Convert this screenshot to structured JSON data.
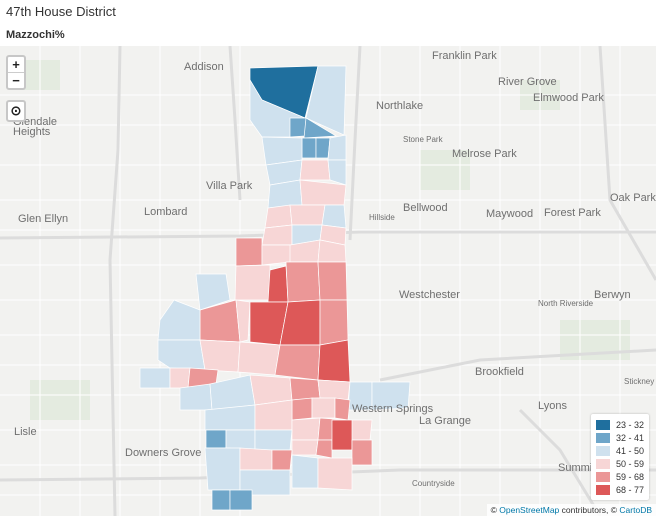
{
  "header": {
    "title": "47th House District",
    "subtitle": "Mazzochi%"
  },
  "controls": {
    "zoom_in": "+",
    "zoom_out": "−",
    "locate": "⊙"
  },
  "map": {
    "places": [
      {
        "name": "Franklin Park",
        "size": "lg"
      },
      {
        "name": "Addison",
        "size": "lg"
      },
      {
        "name": "River Grove",
        "size": "lg"
      },
      {
        "name": "Elmwood Park",
        "size": "lg"
      },
      {
        "name": "Northlake",
        "size": "lg"
      },
      {
        "name": "Glendale",
        "size": "lg"
      },
      {
        "name": "Heights",
        "size": "lg"
      },
      {
        "name": "Stone Park",
        "size": "sm"
      },
      {
        "name": "Melrose Park",
        "size": "lg"
      },
      {
        "name": "Villa Park",
        "size": "lg"
      },
      {
        "name": "Oak Park",
        "size": "lg"
      },
      {
        "name": "Glen Ellyn",
        "size": "lg"
      },
      {
        "name": "Lombard",
        "size": "lg"
      },
      {
        "name": "Bellwood",
        "size": "lg"
      },
      {
        "name": "Hillside",
        "size": "sm"
      },
      {
        "name": "Maywood",
        "size": "lg"
      },
      {
        "name": "Forest Park",
        "size": "lg"
      },
      {
        "name": "Berwyn",
        "size": "lg"
      },
      {
        "name": "Westchester",
        "size": "lg"
      },
      {
        "name": "North Riverside",
        "size": "sm"
      },
      {
        "name": "Brookfield",
        "size": "lg"
      },
      {
        "name": "Stickney",
        "size": "sm"
      },
      {
        "name": "Western Springs",
        "size": "lg"
      },
      {
        "name": "Lyons",
        "size": "lg"
      },
      {
        "name": "Lisle",
        "size": "lg"
      },
      {
        "name": "La Grange",
        "size": "lg"
      },
      {
        "name": "Downers Grove",
        "size": "lg"
      },
      {
        "name": "Countryside",
        "size": "sm"
      },
      {
        "name": "Summit",
        "size": "lg"
      }
    ]
  },
  "legend": {
    "title": "Mazzochi%",
    "items": [
      {
        "label": "23 - 32",
        "color": "#1f6f9e"
      },
      {
        "label": "32 - 41",
        "color": "#6fa6c9"
      },
      {
        "label": "41 - 50",
        "color": "#cfe1ee"
      },
      {
        "label": "50 - 59",
        "color": "#f7d6d6"
      },
      {
        "label": "59 - 68",
        "color": "#eb9797"
      },
      {
        "label": "68 - 77",
        "color": "#dd5858"
      }
    ]
  },
  "attribution": {
    "prefix": "© ",
    "osm": "OpenStreetMap",
    "middle": " contributors, © ",
    "carto": "CartoDB"
  }
}
